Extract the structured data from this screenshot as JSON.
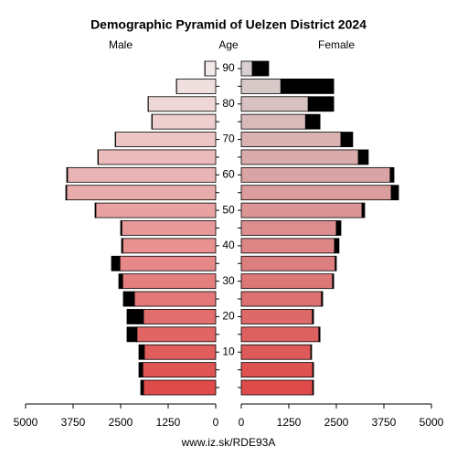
{
  "chart_data": {
    "type": "pyramid",
    "title": "Demographic Pyramid of Uelzen District 2024",
    "left_label": "Male",
    "center_label": "Age",
    "right_label": "Female",
    "footer": "www.iz.sk/RDE93A",
    "categories": [
      null,
      null,
      10,
      null,
      20,
      null,
      30,
      null,
      40,
      null,
      50,
      null,
      60,
      null,
      70,
      null,
      80,
      null,
      90
    ],
    "xlim": [
      0,
      5000
    ],
    "xticks": [
      0,
      1250,
      2500,
      3750,
      5000
    ],
    "male": {
      "colors": [
        "#df4b4b",
        "#f1e8e8"
      ],
      "foreign_color": "#000000",
      "values": [
        1901,
        1919,
        1879,
        2072,
        1902,
        2138,
        2448,
        2520,
        2446,
        2470,
        3153,
        3922,
        3898,
        3091,
        2634,
        1673,
        1774,
        1029,
        283
      ],
      "foreign": [
        70,
        100,
        140,
        260,
        430,
        290,
        100,
        220,
        30,
        30,
        20,
        20,
        20,
        10,
        10,
        10,
        5,
        5,
        5
      ]
    },
    "female": {
      "colors": [
        "#df4b4b",
        "#d8d0d0"
      ],
      "foreign_color": "#000000",
      "values": [
        1880,
        1880,
        1830,
        2040,
        1870,
        2110,
        2400,
        2470,
        2450,
        2500,
        3175,
        3945,
        3915,
        3080,
        2620,
        1690,
        1760,
        1040,
        290
      ],
      "foreign": [
        20,
        20,
        20,
        30,
        30,
        30,
        30,
        30,
        120,
        120,
        70,
        190,
        100,
        260,
        310,
        380,
        670,
        1390,
        430
      ]
    }
  }
}
